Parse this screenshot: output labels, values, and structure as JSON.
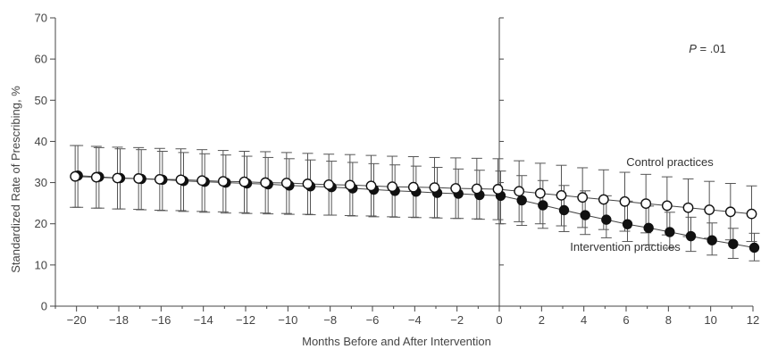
{
  "chart_data": {
    "type": "line",
    "xlabel": "Months Before and After Intervention",
    "ylabel": "Standardized Rate of Prescribing, %",
    "xlim": [
      -21,
      12
    ],
    "ylim": [
      0,
      70
    ],
    "xticks": [
      -20,
      -18,
      -16,
      -14,
      -12,
      -10,
      -8,
      -6,
      -4,
      -2,
      0,
      2,
      4,
      6,
      8,
      10,
      12
    ],
    "xtick_labels": [
      "−20",
      "−18",
      "−16",
      "−14",
      "−12",
      "−10",
      "−8",
      "−6",
      "−4",
      "−2",
      "0",
      "2",
      "4",
      "6",
      "8",
      "10",
      "12"
    ],
    "yticks": [
      0,
      10,
      20,
      30,
      40,
      50,
      60,
      70
    ],
    "ytick_labels": [
      "0",
      "10",
      "20",
      "30",
      "40",
      "50",
      "60",
      "70"
    ],
    "intervention_x": 0,
    "annotations": {
      "p_prefix": "P",
      "p_value": " = .01",
      "control_label": "Control practices",
      "intervention_label": "Intervention practices"
    },
    "grid": false,
    "series": [
      {
        "name": "Control practices",
        "marker": "open-circle",
        "x": [
          -20,
          -19,
          -18,
          -17,
          -16,
          -15,
          -14,
          -13,
          -12,
          -11,
          -10,
          -9,
          -8,
          -7,
          -6,
          -5,
          -4,
          -3,
          -2,
          -1,
          0,
          1,
          2,
          3,
          4,
          5,
          6,
          7,
          8,
          9,
          10,
          11,
          12
        ],
        "y": [
          31.5,
          31.3,
          31.1,
          31.0,
          30.8,
          30.7,
          30.5,
          30.3,
          30.2,
          30.0,
          29.9,
          29.7,
          29.5,
          29.4,
          29.2,
          29.0,
          28.9,
          28.8,
          28.6,
          28.5,
          28.4,
          27.9,
          27.4,
          26.9,
          26.4,
          25.9,
          25.4,
          24.9,
          24.4,
          23.9,
          23.4,
          22.9,
          22.4
        ],
        "lower": [
          24.0,
          23.8,
          23.6,
          23.5,
          23.3,
          23.2,
          23.0,
          22.9,
          22.7,
          22.6,
          22.5,
          22.3,
          22.1,
          22.0,
          21.9,
          21.7,
          21.6,
          21.5,
          21.3,
          21.2,
          21.0,
          20.5,
          20.0,
          19.5,
          19.1,
          18.6,
          18.2,
          17.8,
          17.3,
          16.9,
          16.5,
          16.1,
          15.7
        ],
        "upper": [
          39.0,
          38.8,
          38.6,
          38.5,
          38.3,
          38.2,
          38.0,
          37.8,
          37.6,
          37.5,
          37.3,
          37.1,
          36.9,
          36.8,
          36.6,
          36.4,
          36.3,
          36.1,
          36.0,
          35.9,
          35.8,
          35.3,
          34.7,
          34.2,
          33.6,
          33.1,
          32.5,
          32.0,
          31.4,
          30.9,
          30.3,
          29.8,
          29.2
        ]
      },
      {
        "name": "Intervention practices",
        "marker": "filled-circle",
        "x": [
          -20,
          -19,
          -18,
          -17,
          -16,
          -15,
          -14,
          -13,
          -12,
          -11,
          -10,
          -9,
          -8,
          -7,
          -6,
          -5,
          -4,
          -3,
          -2,
          -1,
          0,
          1,
          2,
          3,
          4,
          5,
          6,
          7,
          8,
          9,
          10,
          11,
          12
        ],
        "y": [
          31.7,
          31.4,
          31.1,
          30.9,
          30.7,
          30.4,
          30.2,
          30.0,
          29.8,
          29.6,
          29.3,
          29.1,
          28.9,
          28.6,
          28.3,
          28.0,
          27.8,
          27.5,
          27.3,
          27.0,
          26.8,
          25.7,
          24.5,
          23.3,
          22.1,
          21.0,
          19.9,
          19.0,
          18.0,
          17.0,
          16.0,
          15.1,
          14.2
        ],
        "lower": [
          24.0,
          23.8,
          23.6,
          23.4,
          23.2,
          23.0,
          22.8,
          22.6,
          22.5,
          22.4,
          22.3,
          22.2,
          22.1,
          21.9,
          21.7,
          21.6,
          21.5,
          21.4,
          21.3,
          21.1,
          20.0,
          19.6,
          18.9,
          18.1,
          17.4,
          16.6,
          15.7,
          14.9,
          14.1,
          13.3,
          12.4,
          11.6,
          11.0
        ],
        "upper": [
          39.0,
          38.5,
          38.2,
          38.0,
          37.6,
          37.3,
          37.0,
          36.7,
          36.4,
          36.1,
          35.8,
          35.5,
          35.2,
          34.9,
          34.6,
          34.3,
          34.0,
          33.7,
          33.3,
          33.0,
          32.8,
          31.7,
          30.5,
          29.3,
          28.0,
          26.8,
          25.5,
          24.3,
          22.8,
          21.6,
          20.2,
          18.9,
          17.7
        ]
      }
    ]
  }
}
